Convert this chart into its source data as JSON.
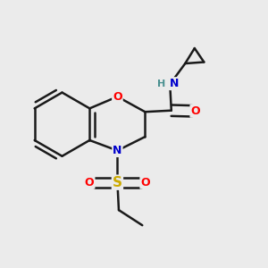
{
  "bg_color": "#ebebeb",
  "bond_color": "#1a1a1a",
  "bond_width": 1.8,
  "atom_colors": {
    "O": "#ff0000",
    "N": "#0000cc",
    "S": "#ccaa00",
    "H": "#4a9090",
    "C": "#1a1a1a"
  },
  "figsize": [
    3.0,
    3.0
  ],
  "dpi": 100
}
